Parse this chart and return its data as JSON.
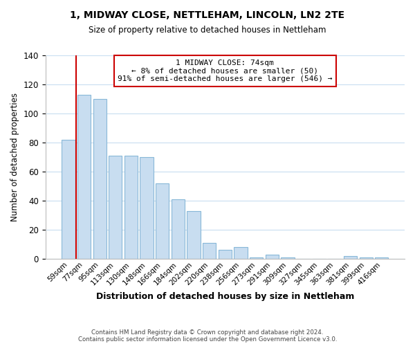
{
  "title": "1, MIDWAY CLOSE, NETTLEHAM, LINCOLN, LN2 2TE",
  "subtitle": "Size of property relative to detached houses in Nettleham",
  "xlabel": "Distribution of detached houses by size in Nettleham",
  "ylabel": "Number of detached properties",
  "bar_color": "#c8ddf0",
  "bar_edge_color": "#88b8d8",
  "annotation_box_color": "#cc0000",
  "annotation_line1": "1 MIDWAY CLOSE: 74sqm",
  "annotation_line2": "← 8% of detached houses are smaller (50)",
  "annotation_line3": "91% of semi-detached houses are larger (546) →",
  "marker_line_color": "#cc0000",
  "categories": [
    "59sqm",
    "77sqm",
    "95sqm",
    "113sqm",
    "130sqm",
    "148sqm",
    "166sqm",
    "184sqm",
    "202sqm",
    "220sqm",
    "238sqm",
    "256sqm",
    "273sqm",
    "291sqm",
    "309sqm",
    "327sqm",
    "345sqm",
    "363sqm",
    "381sqm",
    "399sqm",
    "416sqm"
  ],
  "values": [
    82,
    113,
    110,
    71,
    71,
    70,
    52,
    41,
    33,
    11,
    6,
    8,
    1,
    3,
    1,
    0,
    0,
    0,
    2,
    1,
    1
  ],
  "ylim": [
    0,
    140
  ],
  "yticks": [
    0,
    20,
    40,
    60,
    80,
    100,
    120,
    140
  ],
  "footer_line1": "Contains HM Land Registry data © Crown copyright and database right 2024.",
  "footer_line2": "Contains public sector information licensed under the Open Government Licence v3.0.",
  "background_color": "#ffffff",
  "grid_color": "#c8ddf0"
}
